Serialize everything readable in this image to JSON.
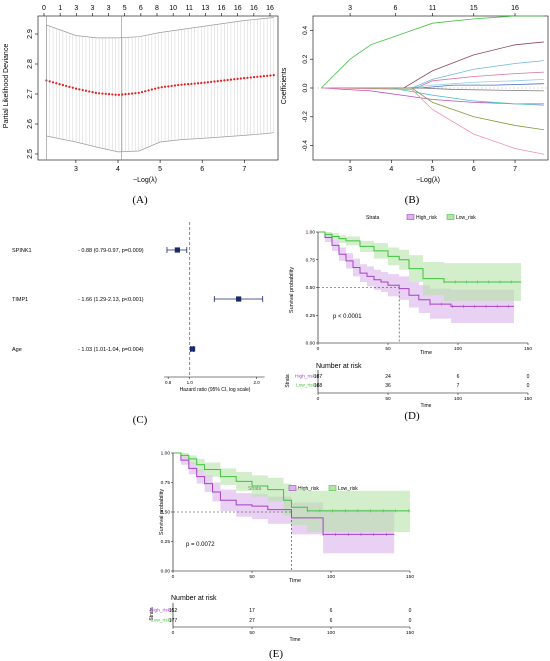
{
  "panel_labels": {
    "A": "(A)",
    "B": "(B)",
    "C": "(C)",
    "D": "(D)",
    "E": "(E)"
  },
  "colors": {
    "high": "#a442c8",
    "low": "#3fc23f",
    "high_fill": "#d9b3ea",
    "low_fill": "#b6e3a8",
    "cv_points": "#e41a1c"
  },
  "chart_data": [
    {
      "id": "A",
      "type": "scatter",
      "title": "",
      "xlabel": "−Log(λ)",
      "ylabel": "Partial Likelihood Deviance",
      "x_ticks": [
        "3",
        "4",
        "5",
        "6",
        "7"
      ],
      "y_ticks": [
        "2.5",
        "2.6",
        "2.7",
        "2.8",
        "2.9"
      ],
      "top_ticks": [
        "0",
        "1",
        "3",
        "3",
        "3",
        "5",
        "6",
        "8",
        "10",
        "11",
        "13",
        "16",
        "16",
        "16",
        "16"
      ],
      "xlim": [
        2.1,
        7.8
      ],
      "ylim": [
        2.48,
        2.96
      ],
      "vlines": [
        2.3,
        4.08
      ],
      "x": [
        2.3,
        3.0,
        3.5,
        4.0,
        4.5,
        5.0,
        5.5,
        6.0,
        6.5,
        7.0,
        7.5,
        7.7
      ],
      "values": [
        2.745,
        2.718,
        2.703,
        2.697,
        2.704,
        2.722,
        2.731,
        2.737,
        2.745,
        2.753,
        2.76,
        2.763
      ],
      "upper": [
        2.93,
        2.895,
        2.887,
        2.887,
        2.891,
        2.905,
        2.915,
        2.925,
        2.935,
        2.945,
        2.952,
        2.955
      ],
      "lower": [
        2.56,
        2.54,
        2.523,
        2.507,
        2.51,
        2.54,
        2.548,
        2.552,
        2.557,
        2.562,
        2.568,
        2.571
      ]
    },
    {
      "id": "B",
      "type": "line",
      "title": "",
      "xlabel": "−Log(λ)",
      "ylabel": "Coefficients",
      "x_ticks": [
        "3",
        "4",
        "5",
        "6",
        "7"
      ],
      "y_ticks": [
        "-0.4",
        "-0.2",
        "0.0",
        "0.2",
        "0.4"
      ],
      "top_ticks": [
        "3",
        "6",
        "11",
        "15",
        "16"
      ],
      "xlim": [
        2.1,
        7.8
      ],
      "ylim": [
        -0.5,
        0.5
      ],
      "series": [
        {
          "color": "#3fc23f",
          "x": [
            2.3,
            3.0,
            3.5,
            4.0,
            4.5,
            5.0,
            6.0,
            7.0,
            7.7
          ],
          "values": [
            0.0,
            0.2,
            0.3,
            0.35,
            0.4,
            0.45,
            0.48,
            0.5,
            0.5
          ]
        },
        {
          "color": "#8a4a5a",
          "x": [
            2.3,
            3.5,
            4.3,
            5.0,
            6.0,
            7.0,
            7.7
          ],
          "values": [
            0,
            0,
            0,
            0.12,
            0.23,
            0.3,
            0.32
          ]
        },
        {
          "color": "#6bb7e0",
          "x": [
            2.3,
            3.5,
            4.5,
            5.0,
            6.0,
            7.0,
            7.7
          ],
          "values": [
            0,
            0,
            0,
            0.06,
            0.13,
            0.17,
            0.19
          ]
        },
        {
          "color": "#d76fa6",
          "x": [
            2.3,
            3.5,
            4.6,
            5.0,
            6.0,
            7.0,
            7.7
          ],
          "values": [
            0,
            0,
            0,
            0.05,
            0.08,
            0.1,
            0.11
          ]
        },
        {
          "color": "#8ecfe0",
          "x": [
            2.3,
            4.4,
            5.0,
            6.0,
            7.0,
            7.7
          ],
          "values": [
            0,
            0,
            0.02,
            0.04,
            0.05,
            0.06
          ]
        },
        {
          "color": "#4a6ad0",
          "x": [
            2.3,
            4.7,
            5.5,
            6.5,
            7.7
          ],
          "values": [
            0,
            0,
            0.02,
            0.02,
            0.03
          ]
        },
        {
          "color": "#7a7a7a",
          "x": [
            2.3,
            4.7,
            5.5,
            6.5,
            7.7
          ],
          "values": [
            0,
            0,
            -0.01,
            -0.015,
            -0.02
          ]
        },
        {
          "color": "#c04ac0",
          "x": [
            2.3,
            3.5,
            4.5,
            5.0,
            6.0,
            7.0,
            7.7
          ],
          "values": [
            0,
            -0.02,
            -0.06,
            -0.08,
            -0.1,
            -0.11,
            -0.11
          ]
        },
        {
          "color": "#4fc4c4",
          "x": [
            2.3,
            4.0,
            5.0,
            6.0,
            7.0,
            7.7
          ],
          "values": [
            0,
            0,
            -0.05,
            -0.09,
            -0.11,
            -0.12
          ]
        },
        {
          "color": "#7e9a3a",
          "x": [
            2.3,
            4.5,
            5.0,
            6.0,
            7.0,
            7.7
          ],
          "values": [
            0,
            0,
            -0.1,
            -0.2,
            -0.26,
            -0.29
          ]
        },
        {
          "color": "#f08fb0",
          "x": [
            2.3,
            4.5,
            5.0,
            6.0,
            7.0,
            7.7
          ],
          "values": [
            0,
            -0.01,
            -0.15,
            -0.32,
            -0.42,
            -0.46
          ]
        }
      ]
    },
    {
      "id": "C",
      "type": "scatter",
      "title": "",
      "xlabel": "Hazard ratio (95% CI, log scale)",
      "ylabel": "",
      "x_ticks": [
        "0.8",
        "1.0",
        "2.0"
      ],
      "xlim": [
        0.72,
        2.25
      ],
      "reference_line": 1.0,
      "rows": [
        {
          "name": "SPINK1",
          "label": "- 0.88 (0.79-0.97, p=0.009)",
          "hr": 0.88,
          "low": 0.79,
          "high": 0.97
        },
        {
          "name": "TIMP1",
          "label": "- 1.66 (1.29-2.13, p<0.001)",
          "hr": 1.66,
          "low": 1.29,
          "high": 2.13
        },
        {
          "name": "Age",
          "label": "- 1.03 (1.01-1.04, p=0.004)",
          "hr": 1.03,
          "low": 1.01,
          "high": 1.04
        }
      ]
    },
    {
      "id": "D",
      "type": "line",
      "title": "",
      "xlabel": "Time",
      "ylabel": "Survival probability",
      "legend_title": "Strata",
      "legend": [
        "High_risk",
        "Low_risk"
      ],
      "legend_placement": "top",
      "xlim": [
        0,
        150
      ],
      "ylim": [
        0,
        1
      ],
      "x_ticks": [
        "0",
        "50",
        "100",
        "150"
      ],
      "y_ticks": [
        "0.00",
        "0.25",
        "0.50",
        "0.75",
        "1.00"
      ],
      "pvalue": "p < 0.0001",
      "median_line": 58,
      "series": [
        {
          "name": "High_risk",
          "color": "#a442c8",
          "x": [
            0,
            5,
            10,
            15,
            20,
            25,
            30,
            35,
            40,
            45,
            50,
            58,
            65,
            72,
            80,
            95,
            140
          ],
          "values": [
            1.0,
            0.95,
            0.88,
            0.8,
            0.74,
            0.68,
            0.63,
            0.6,
            0.57,
            0.55,
            0.52,
            0.49,
            0.43,
            0.39,
            0.35,
            0.33,
            0.33
          ],
          "upper": [
            1.0,
            0.98,
            0.93,
            0.86,
            0.81,
            0.76,
            0.71,
            0.69,
            0.66,
            0.64,
            0.62,
            0.6,
            0.55,
            0.52,
            0.49,
            0.48,
            0.48
          ],
          "lower": [
            1.0,
            0.91,
            0.83,
            0.74,
            0.67,
            0.6,
            0.55,
            0.51,
            0.48,
            0.46,
            0.42,
            0.39,
            0.32,
            0.27,
            0.22,
            0.18,
            0.18
          ]
        },
        {
          "name": "Low_risk",
          "color": "#3fc23f",
          "x": [
            0,
            5,
            10,
            15,
            20,
            30,
            40,
            50,
            58,
            65,
            75,
            90,
            100,
            145
          ],
          "values": [
            1.0,
            0.98,
            0.96,
            0.94,
            0.92,
            0.87,
            0.83,
            0.78,
            0.75,
            0.67,
            0.58,
            0.55,
            0.55,
            0.55
          ],
          "upper": [
            1.0,
            1.0,
            0.99,
            0.97,
            0.96,
            0.92,
            0.9,
            0.86,
            0.84,
            0.79,
            0.73,
            0.72,
            0.72,
            0.72
          ],
          "lower": [
            1.0,
            0.96,
            0.93,
            0.9,
            0.88,
            0.82,
            0.76,
            0.7,
            0.66,
            0.55,
            0.43,
            0.38,
            0.38,
            0.38
          ]
        }
      ],
      "risk_table": {
        "title": "Number at risk",
        "ylabel": "Strata",
        "xlabel": "Time",
        "rows": [
          {
            "name": "High_risk",
            "values": [
              "187",
              "24",
              "6",
              "0"
            ]
          },
          {
            "name": "Low_risk",
            "values": [
              "188",
              "36",
              "7",
              "0"
            ]
          }
        ],
        "x_ticks": [
          "0",
          "50",
          "100",
          "150"
        ]
      }
    },
    {
      "id": "E",
      "type": "line",
      "title": "",
      "xlabel": "Time",
      "ylabel": "Survival probability",
      "legend_title": "Strata",
      "legend": [
        "High_risk",
        "Low_risk"
      ],
      "legend_placement": "top",
      "xlim": [
        0,
        150
      ],
      "ylim": [
        0,
        1
      ],
      "x_ticks": [
        "0",
        "50",
        "100",
        "150"
      ],
      "y_ticks": [
        "0.00",
        "0.25",
        "0.50",
        "0.75",
        "1.00"
      ],
      "pvalue": "p = 0.0072",
      "median_line": 75,
      "series": [
        {
          "name": "High_risk",
          "color": "#a442c8",
          "x": [
            0,
            5,
            10,
            15,
            20,
            25,
            30,
            40,
            50,
            60,
            75,
            80,
            95,
            100,
            140
          ],
          "values": [
            1.0,
            0.94,
            0.87,
            0.8,
            0.74,
            0.67,
            0.6,
            0.56,
            0.55,
            0.52,
            0.45,
            0.45,
            0.31,
            0.31,
            0.31
          ],
          "upper": [
            1.0,
            0.97,
            0.92,
            0.86,
            0.81,
            0.75,
            0.69,
            0.66,
            0.65,
            0.63,
            0.58,
            0.58,
            0.52,
            0.52,
            0.52
          ],
          "lower": [
            1.0,
            0.9,
            0.82,
            0.74,
            0.67,
            0.59,
            0.51,
            0.46,
            0.44,
            0.4,
            0.31,
            0.31,
            0.15,
            0.15,
            0.15
          ]
        },
        {
          "name": "Low_risk",
          "color": "#3fc23f",
          "x": [
            0,
            5,
            10,
            15,
            20,
            30,
            40,
            50,
            60,
            70,
            75,
            85,
            100,
            150
          ],
          "values": [
            1.0,
            0.98,
            0.95,
            0.9,
            0.86,
            0.8,
            0.76,
            0.72,
            0.69,
            0.6,
            0.54,
            0.51,
            0.51,
            0.51
          ],
          "upper": [
            1.0,
            1.0,
            0.98,
            0.95,
            0.92,
            0.87,
            0.84,
            0.81,
            0.79,
            0.74,
            0.7,
            0.68,
            0.68,
            0.68
          ],
          "lower": [
            1.0,
            0.96,
            0.91,
            0.85,
            0.8,
            0.73,
            0.68,
            0.63,
            0.59,
            0.47,
            0.39,
            0.33,
            0.33,
            0.33
          ]
        }
      ],
      "risk_table": {
        "title": "Number at risk",
        "ylabel": "Strata",
        "xlabel": "Time",
        "rows": [
          {
            "name": "High_risk",
            "values": [
              "152",
              "17",
              "6",
              "0"
            ]
          },
          {
            "name": "Low_risk",
            "values": [
              "177",
              "27",
              "6",
              "0"
            ]
          }
        ],
        "x_ticks": [
          "0",
          "50",
          "100",
          "150"
        ]
      }
    }
  ]
}
